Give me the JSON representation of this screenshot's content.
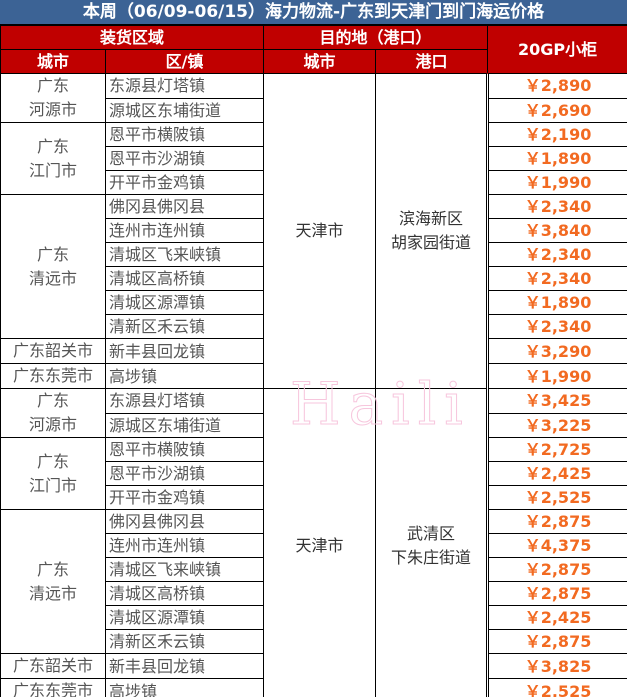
{
  "title": "本周（06/09-06/15）海力物流-广东到天津门到门海运价格",
  "header": {
    "loading_area": "装货区域",
    "destination": "目的地（港口）",
    "container": "20GP小柜",
    "city": "城市",
    "town": "区/镇",
    "dest_city": "城市",
    "port": "港口"
  },
  "watermark": "Haili",
  "price_color": "#f26a21",
  "blocks": [
    {
      "dest_city": "天津市",
      "port": "滨海新区\n胡家园街道",
      "groups": [
        {
          "city": "广东\n河源市",
          "rows": [
            {
              "town": "东源县灯塔镇",
              "price": "￥2,890"
            },
            {
              "town": "源城区东埔街道",
              "price": "￥2,690"
            }
          ]
        },
        {
          "city": "广东\n江门市",
          "rows": [
            {
              "town": "恩平市横陂镇",
              "price": "￥2,190"
            },
            {
              "town": "恩平市沙湖镇",
              "price": "￥1,890"
            },
            {
              "town": "开平市金鸡镇",
              "price": "￥1,990"
            }
          ]
        },
        {
          "city": "广东\n清远市",
          "rows": [
            {
              "town": "佛冈县佛冈县",
              "price": "￥2,340"
            },
            {
              "town": "连州市连州镇",
              "price": "￥3,840"
            },
            {
              "town": "清城区飞来峡镇",
              "price": "￥2,340"
            },
            {
              "town": "清城区高桥镇",
              "price": "￥2,340"
            },
            {
              "town": "清城区源潭镇",
              "price": "￥1,890"
            },
            {
              "town": "清新区禾云镇",
              "price": "￥2,340"
            }
          ]
        },
        {
          "city": "广东韶关市",
          "rows": [
            {
              "town": "新丰县回龙镇",
              "price": "￥3,290"
            }
          ]
        },
        {
          "city": "广东东莞市",
          "rows": [
            {
              "town": "高埗镇",
              "price": "￥1,990"
            }
          ]
        }
      ]
    },
    {
      "dest_city": "天津市",
      "port": "武清区\n下朱庄街道",
      "groups": [
        {
          "city": "广东\n河源市",
          "rows": [
            {
              "town": "东源县灯塔镇",
              "price": "￥3,425"
            },
            {
              "town": "源城区东埔街道",
              "price": "￥3,225"
            }
          ]
        },
        {
          "city": "广东\n江门市",
          "rows": [
            {
              "town": "恩平市横陂镇",
              "price": "￥2,725"
            },
            {
              "town": "恩平市沙湖镇",
              "price": "￥2,425"
            },
            {
              "town": "开平市金鸡镇",
              "price": "￥2,525"
            }
          ]
        },
        {
          "city": "广东\n清远市",
          "rows": [
            {
              "town": "佛冈县佛冈县",
              "price": "￥2,875"
            },
            {
              "town": "连州市连州镇",
              "price": "￥4,375"
            },
            {
              "town": "清城区飞来峡镇",
              "price": "￥2,875"
            },
            {
              "town": "清城区高桥镇",
              "price": "￥2,875"
            },
            {
              "town": "清城区源潭镇",
              "price": "￥2,425"
            },
            {
              "town": "清新区禾云镇",
              "price": "￥2,875"
            }
          ]
        },
        {
          "city": "广东韶关市",
          "rows": [
            {
              "town": "新丰县回龙镇",
              "price": "￥3,825"
            }
          ]
        },
        {
          "city": "广东东莞市",
          "rows": [
            {
              "town": "高埗镇",
              "price": "￥2,525"
            }
          ]
        }
      ]
    }
  ]
}
